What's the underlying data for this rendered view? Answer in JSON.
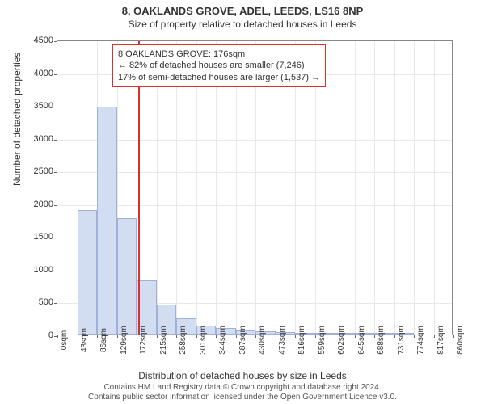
{
  "chart": {
    "type": "histogram",
    "title_main": "8, OAKLANDS GROVE, ADEL, LEEDS, LS16 8NP",
    "title_sub": "Size of property relative to detached houses in Leeds",
    "ylabel": "Number of detached properties",
    "xlabel": "Distribution of detached houses by size in Leeds",
    "ylim": [
      0,
      4500
    ],
    "ytick_step": 500,
    "yticks": [
      0,
      500,
      1000,
      1500,
      2000,
      2500,
      3000,
      3500,
      4000,
      4500
    ],
    "xtick_labels": [
      "0sqm",
      "43sqm",
      "86sqm",
      "129sqm",
      "172sqm",
      "215sqm",
      "258sqm",
      "301sqm",
      "344sqm",
      "387sqm",
      "430sqm",
      "473sqm",
      "516sqm",
      "559sqm",
      "602sqm",
      "645sqm",
      "688sqm",
      "731sqm",
      "774sqm",
      "817sqm",
      "860sqm"
    ],
    "bar_values": [
      0,
      1900,
      3480,
      1770,
      830,
      460,
      250,
      140,
      95,
      65,
      50,
      35,
      20,
      10,
      8,
      6,
      4,
      2,
      0,
      0
    ],
    "bar_color": "#d3ddf2",
    "bar_border_color": "#a0b0d8",
    "grid_color": "#e8e8e8",
    "axis_color": "#888888",
    "background_color": "#ffffff",
    "reference_value_sqm": 176,
    "reference_line_color": "#d93030",
    "infobox": {
      "line1": "8 OAKLANDS GROVE: 176sqm",
      "line2": "← 82% of detached houses are smaller (7,246)",
      "line3": "17% of semi-detached houses are larger (1,537) →",
      "border_color": "#d93030",
      "background_color": "#ffffff",
      "font_size": 11
    },
    "attribution_line1": "Contains HM Land Registry data © Crown copyright and database right 2024.",
    "attribution_line2": "Contains public sector information licensed under the Open Government Licence v3.0.",
    "title_fontsize": 13,
    "subtitle_fontsize": 12,
    "label_fontsize": 12,
    "tick_fontsize": 11
  }
}
